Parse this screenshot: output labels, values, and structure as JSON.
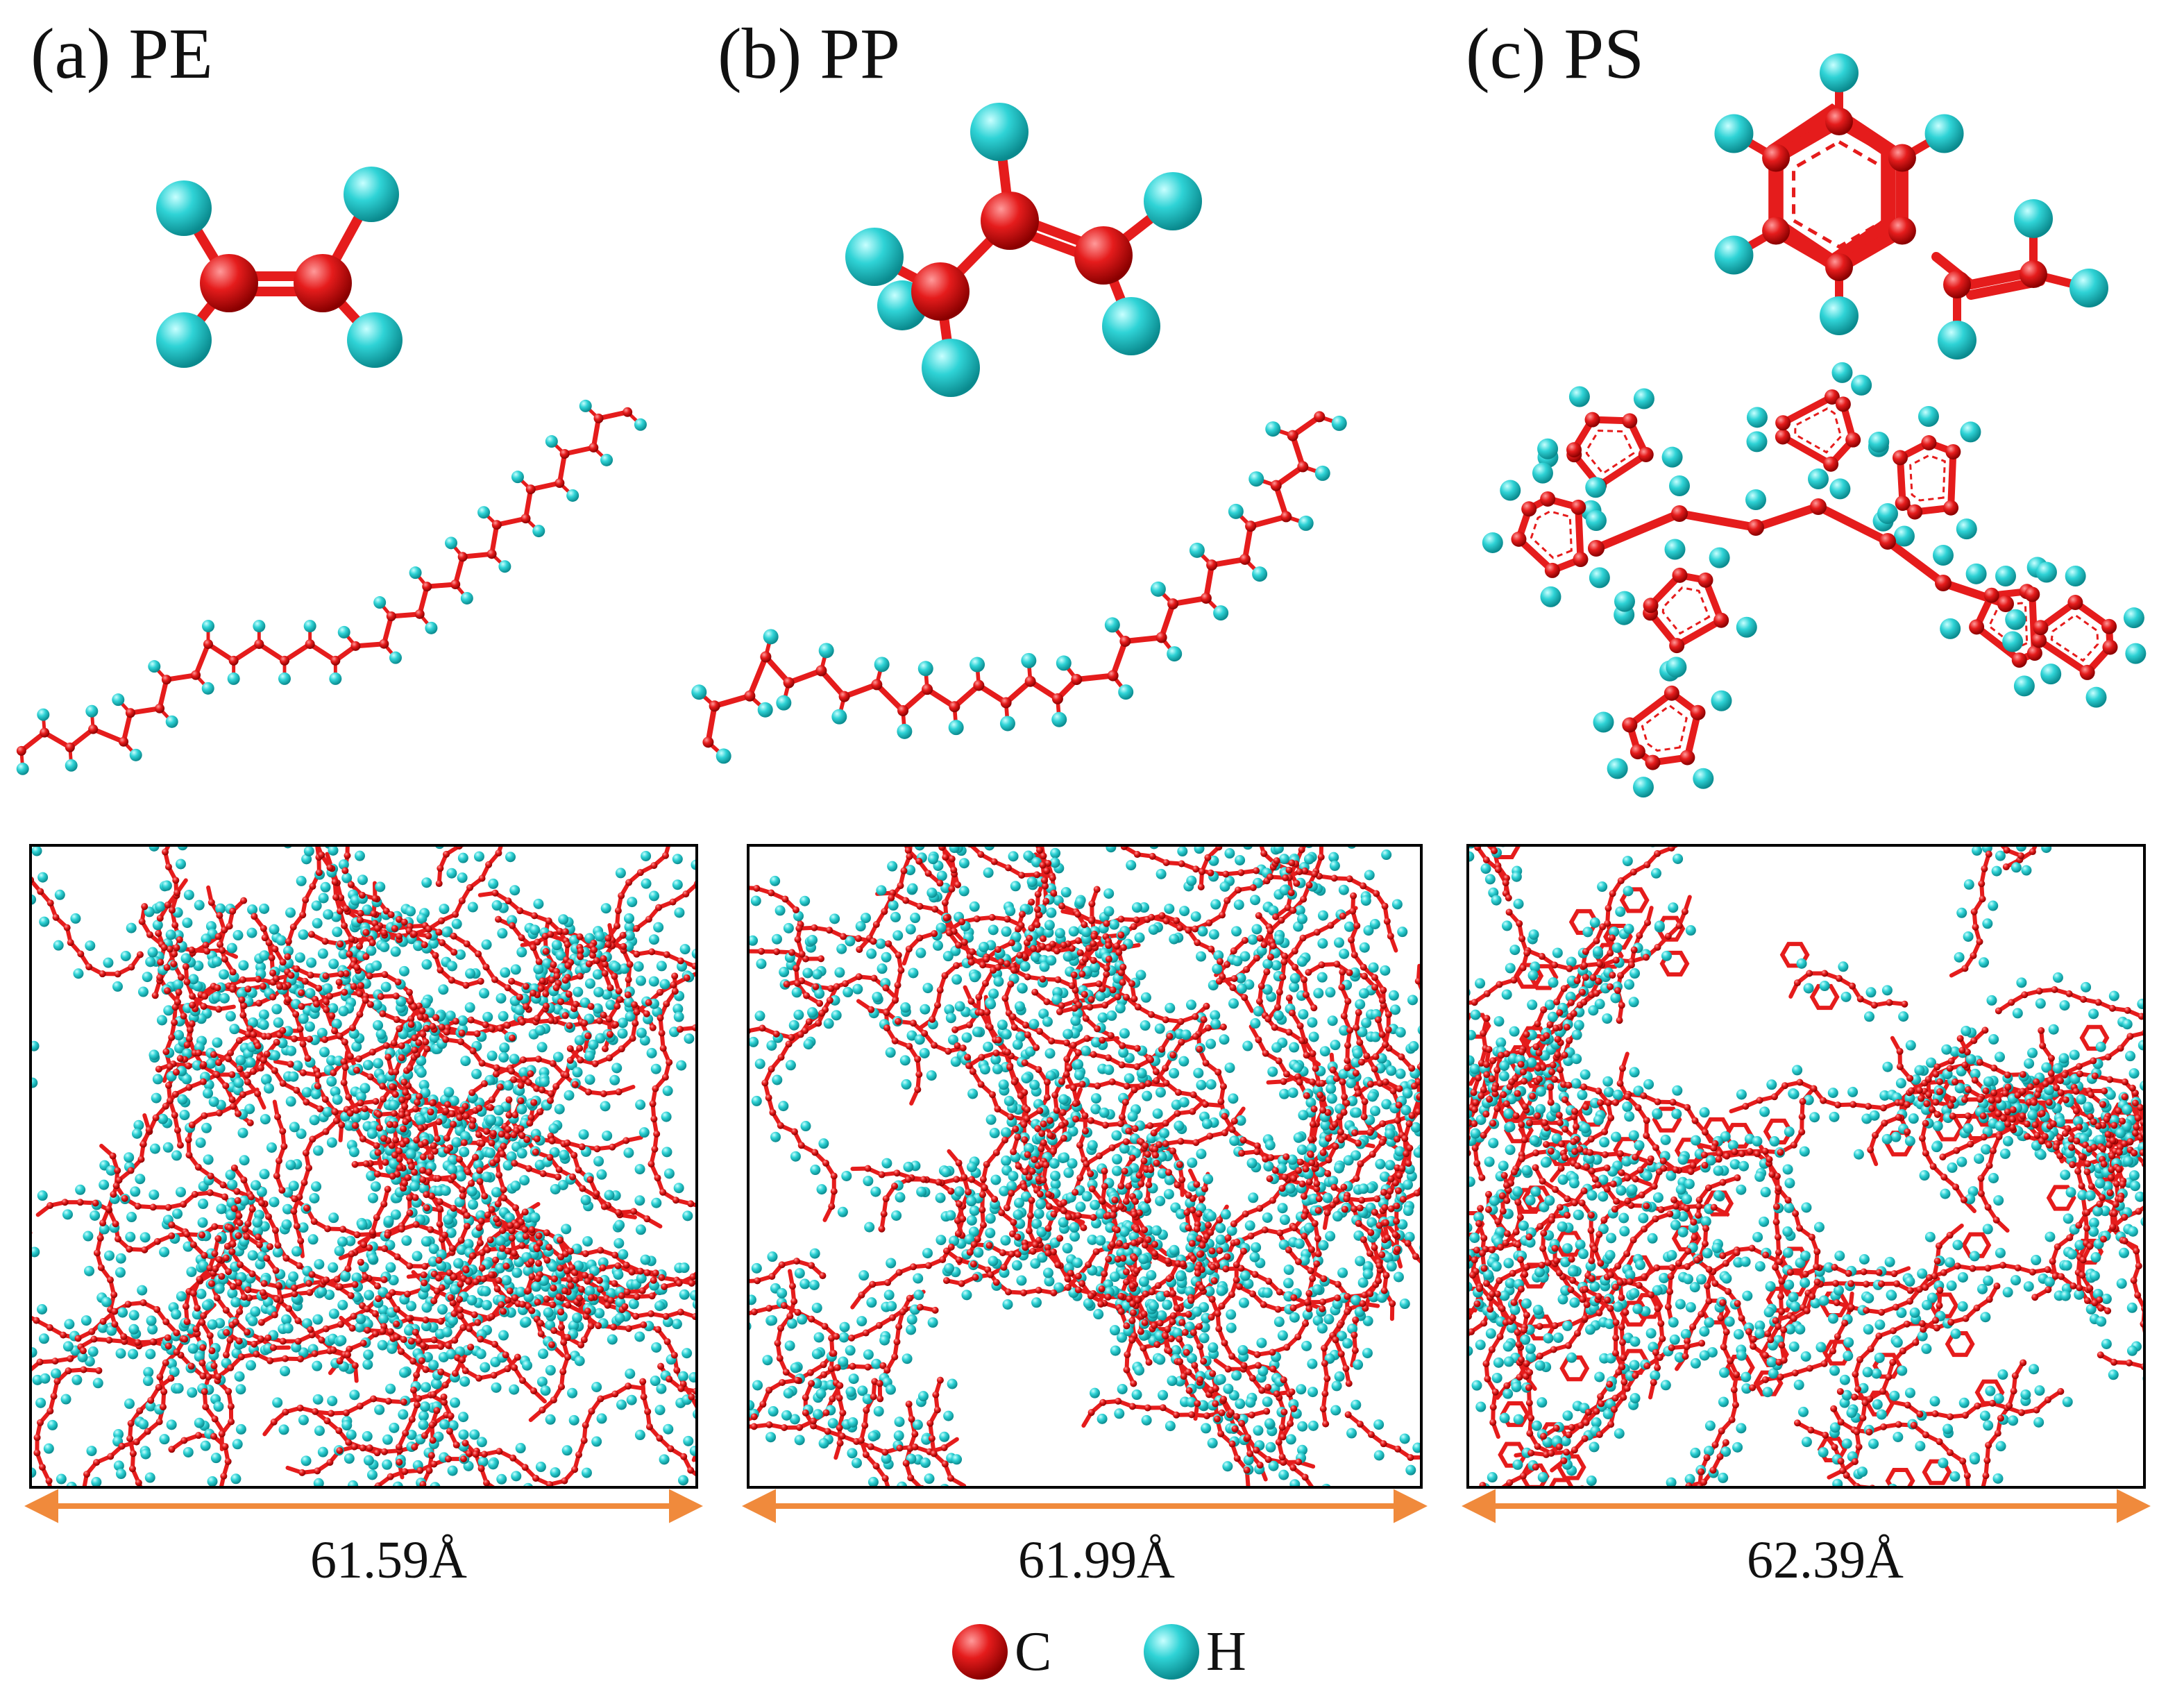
{
  "panels": [
    {
      "id": "pe",
      "title": "(a) PE",
      "box_length": "61.59Å"
    },
    {
      "id": "pp",
      "title": "(b) PP",
      "box_length": "61.99Å"
    },
    {
      "id": "ps",
      "title": "(c) PS",
      "box_length": "62.39Å"
    }
  ],
  "legend": [
    {
      "element": "C",
      "color": "#e51c1c"
    },
    {
      "element": "H",
      "color": "#2fd3d6"
    }
  ],
  "colors": {
    "carbon": "#e51c1c",
    "hydrogen": "#2fd3d6",
    "dimension_arrow": "#f08a3c",
    "box_border": "#000000"
  }
}
